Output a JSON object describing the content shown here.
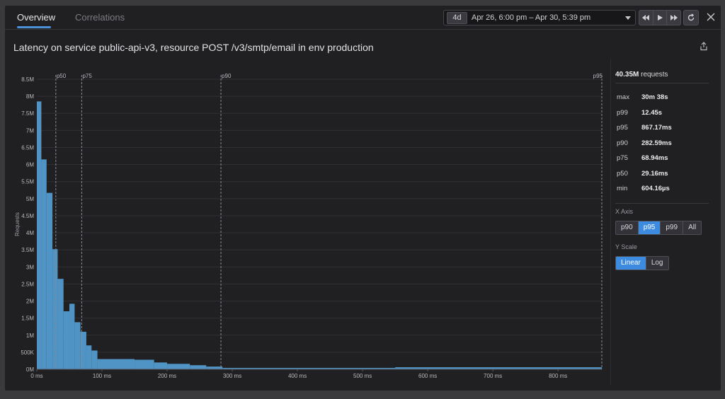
{
  "tabs": [
    {
      "label": "Overview",
      "active": true
    },
    {
      "label": "Correlations",
      "active": false
    }
  ],
  "timepicker": {
    "duration": "4d",
    "range": "Apr 26, 6:00 pm – Apr 30, 5:39 pm"
  },
  "playback": {
    "icons": [
      "rewind-icon",
      "play-icon",
      "fast-forward-icon"
    ]
  },
  "title": "Latency on service public-api-v3, resource POST /v3/smtp/email in env production",
  "sidebar": {
    "total_value": "40.35M",
    "total_label": "requests",
    "stats": [
      {
        "label": "max",
        "value": "30m 38s"
      },
      {
        "label": "p99",
        "value": "12.45s"
      },
      {
        "label": "p95",
        "value": "867.17ms"
      },
      {
        "label": "p90",
        "value": "282.59ms"
      },
      {
        "label": "p75",
        "value": "68.94ms"
      },
      {
        "label": "p50",
        "value": "29.16ms"
      },
      {
        "label": "min",
        "value": "604.16µs"
      }
    ],
    "x_axis_label": "X Axis",
    "x_axis_options": [
      "p90",
      "p95",
      "p99",
      "All"
    ],
    "x_axis_selected": "p95",
    "y_scale_label": "Y Scale",
    "y_scale_options": [
      "Linear",
      "Log"
    ],
    "y_scale_selected": "Linear"
  },
  "colors": {
    "accent": "#3c8be0",
    "bar": "#4f94c4"
  },
  "chart_data": {
    "type": "bar",
    "title": "Latency on service public-api-v3, resource POST /v3/smtp/email in env production",
    "xlabel": "",
    "ylabel": "Requests",
    "x_unit": "ms",
    "xlim": [
      0,
      867.17
    ],
    "ylim": [
      0,
      8500000
    ],
    "x_ticks": [
      {
        "value": 0,
        "label": "0 ms"
      },
      {
        "value": 100,
        "label": "100 ms"
      },
      {
        "value": 200,
        "label": "200 ms"
      },
      {
        "value": 300,
        "label": "300 ms"
      },
      {
        "value": 400,
        "label": "400 ms"
      },
      {
        "value": 500,
        "label": "500 ms"
      },
      {
        "value": 600,
        "label": "600 ms"
      },
      {
        "value": 700,
        "label": "700 ms"
      },
      {
        "value": 800,
        "label": "800 ms"
      }
    ],
    "y_ticks": [
      {
        "value": 0,
        "label": "0M"
      },
      {
        "value": 500000,
        "label": "500K"
      },
      {
        "value": 1000000,
        "label": "1M"
      },
      {
        "value": 1500000,
        "label": "1.5M"
      },
      {
        "value": 2000000,
        "label": "2M"
      },
      {
        "value": 2500000,
        "label": "2.5M"
      },
      {
        "value": 3000000,
        "label": "3M"
      },
      {
        "value": 3500000,
        "label": "3.5M"
      },
      {
        "value": 4000000,
        "label": "4M"
      },
      {
        "value": 4500000,
        "label": "4.5M"
      },
      {
        "value": 5000000,
        "label": "5M"
      },
      {
        "value": 5500000,
        "label": "5.5M"
      },
      {
        "value": 6000000,
        "label": "6M"
      },
      {
        "value": 6500000,
        "label": "6.5M"
      },
      {
        "value": 7000000,
        "label": "7M"
      },
      {
        "value": 7500000,
        "label": "7.5M"
      },
      {
        "value": 8000000,
        "label": "8M"
      },
      {
        "value": 8500000,
        "label": "8.5M"
      }
    ],
    "percentile_markers": [
      {
        "label": "p50",
        "value": 29.16
      },
      {
        "label": "p75",
        "value": 68.94
      },
      {
        "label": "p90",
        "value": 282.59
      },
      {
        "label": "p95",
        "value": 867.17
      }
    ],
    "bins": [
      {
        "x0": 0,
        "x1": 7,
        "y": 7850000
      },
      {
        "x0": 7,
        "x1": 15,
        "y": 6150000
      },
      {
        "x0": 15,
        "x1": 24,
        "y": 5170000
      },
      {
        "x0": 24,
        "x1": 32,
        "y": 3520000
      },
      {
        "x0": 32,
        "x1": 41,
        "y": 2650000
      },
      {
        "x0": 41,
        "x1": 50,
        "y": 1700000
      },
      {
        "x0": 50,
        "x1": 58,
        "y": 1920000
      },
      {
        "x0": 58,
        "x1": 67,
        "y": 1380000
      },
      {
        "x0": 67,
        "x1": 76,
        "y": 1100000
      },
      {
        "x0": 76,
        "x1": 84,
        "y": 700000
      },
      {
        "x0": 84,
        "x1": 93,
        "y": 550000
      },
      {
        "x0": 93,
        "x1": 150,
        "y": 300000
      },
      {
        "x0": 150,
        "x1": 180,
        "y": 280000
      },
      {
        "x0": 180,
        "x1": 200,
        "y": 200000
      },
      {
        "x0": 200,
        "x1": 235,
        "y": 160000
      },
      {
        "x0": 235,
        "x1": 260,
        "y": 120000
      },
      {
        "x0": 260,
        "x1": 285,
        "y": 80000
      },
      {
        "x0": 285,
        "x1": 550,
        "y": 40000
      },
      {
        "x0": 550,
        "x1": 867.17,
        "y": 60000
      }
    ],
    "grid": true,
    "legend": "none"
  }
}
